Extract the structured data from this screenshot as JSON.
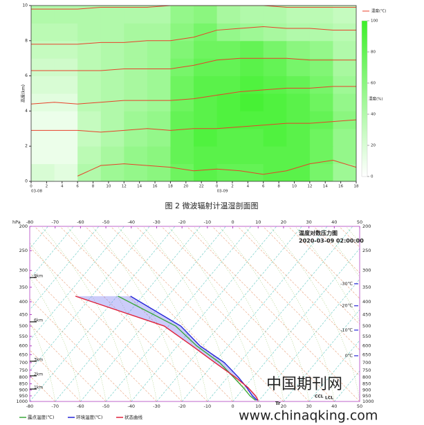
{
  "chart_data": [
    {
      "type": "heatmap",
      "ylabel": "高度(km)",
      "xlim": [
        0,
        42
      ],
      "ylim": [
        0,
        10
      ],
      "yticks": [
        0,
        2,
        4,
        6,
        8,
        10
      ],
      "xticks": [
        0,
        2,
        4,
        6,
        8,
        10,
        12,
        14,
        16,
        18,
        20,
        22,
        {
          "value": 24,
          "label": "0"
        },
        {
          "value": 26,
          "label": "2"
        },
        {
          "value": 28,
          "label": "4"
        },
        {
          "value": 30,
          "label": "6"
        },
        {
          "value": 32,
          "label": "8"
        },
        {
          "value": 34,
          "label": "10"
        },
        {
          "value": 36,
          "label": "12"
        },
        {
          "value": 38,
          "label": "14"
        },
        {
          "value": 40,
          "label": "16"
        },
        {
          "value": 42,
          "label": "18"
        }
      ],
      "dates": [
        {
          "value": 0,
          "label": "03-08"
        },
        {
          "value": 24,
          "label": "03-09"
        }
      ],
      "humidity": {
        "name": "湿度(%)",
        "clim": [
          0,
          100
        ],
        "colorbar_ticks": [
          100,
          80,
          60,
          40,
          20,
          0
        ],
        "x_bins": [
          0,
          3,
          6,
          9,
          12,
          15,
          18,
          21,
          24,
          27,
          30,
          33,
          36,
          39,
          42
        ],
        "y_bins": [
          0,
          1,
          2,
          3,
          4,
          5,
          6,
          7,
          8,
          9,
          10
        ],
        "values": [
          [
            20,
            15,
            40,
            50,
            55,
            60,
            75,
            85,
            80,
            80,
            85,
            85,
            70,
            50
          ],
          [
            10,
            10,
            35,
            45,
            55,
            60,
            80,
            85,
            85,
            85,
            85,
            85,
            75,
            55
          ],
          [
            10,
            10,
            30,
            40,
            50,
            55,
            80,
            90,
            85,
            85,
            90,
            85,
            75,
            55
          ],
          [
            10,
            10,
            30,
            40,
            50,
            55,
            80,
            85,
            90,
            90,
            90,
            85,
            80,
            60
          ],
          [
            15,
            15,
            35,
            40,
            45,
            50,
            75,
            85,
            90,
            95,
            90,
            85,
            75,
            55
          ],
          [
            20,
            20,
            35,
            40,
            45,
            50,
            75,
            85,
            85,
            90,
            85,
            80,
            70,
            50
          ],
          [
            25,
            25,
            35,
            40,
            45,
            50,
            70,
            80,
            80,
            85,
            80,
            70,
            65,
            45
          ],
          [
            30,
            30,
            35,
            40,
            45,
            50,
            65,
            75,
            75,
            80,
            70,
            60,
            55,
            40
          ],
          [
            35,
            35,
            40,
            40,
            45,
            45,
            60,
            70,
            55,
            50,
            45,
            40,
            40,
            35
          ],
          [
            40,
            40,
            40,
            40,
            40,
            40,
            55,
            60,
            45,
            40,
            40,
            35,
            35,
            30
          ]
        ]
      },
      "temperature": {
        "name": "温度(℃)",
        "color": "#e8402a",
        "x": [
          0,
          3,
          6,
          9,
          12,
          15,
          18,
          21,
          24,
          27,
          30,
          33,
          36,
          39,
          42
        ],
        "lines": [
          [
            null,
            null,
            0.3,
            0.9,
            1.0,
            0.9,
            0.8,
            0.6,
            0.7,
            0.6,
            0.4,
            0.6,
            1.0,
            1.2,
            0.8
          ],
          [
            2.9,
            2.9,
            2.9,
            2.8,
            2.9,
            3.0,
            2.9,
            3.0,
            3.0,
            3.1,
            3.2,
            3.3,
            3.3,
            3.4,
            3.5
          ],
          [
            4.4,
            4.5,
            4.4,
            4.5,
            4.6,
            4.6,
            4.6,
            4.7,
            4.9,
            5.1,
            5.2,
            5.3,
            5.3,
            5.4,
            5.4
          ],
          [
            6.3,
            6.3,
            6.3,
            6.3,
            6.4,
            6.4,
            6.4,
            6.6,
            6.9,
            7.0,
            7.0,
            7.0,
            6.9,
            6.9,
            6.9
          ],
          [
            7.8,
            7.8,
            7.8,
            7.9,
            7.9,
            8.0,
            8.0,
            8.2,
            8.6,
            8.7,
            8.8,
            8.7,
            8.7,
            8.6,
            8.6
          ],
          [
            9.8,
            9.8,
            9.8,
            9.9,
            9.9,
            9.9,
            10.0,
            10.0,
            10.0,
            10.0,
            10.0,
            9.9,
            9.9,
            9.9,
            9.9
          ]
        ]
      },
      "caption": "图 2  微波辐射计温湿剖面图"
    },
    {
      "type": "skewt",
      "title": "温度对数压力图",
      "time": "2020-03-09 02:00:00",
      "yunit": "hPa",
      "xlim": [
        -80,
        50
      ],
      "xticks": [
        -80,
        -70,
        -60,
        -50,
        -40,
        -30,
        -20,
        -10,
        0,
        10,
        20,
        30,
        40,
        50
      ],
      "ylim": [
        1000,
        200
      ],
      "ylog": true,
      "yticks": [
        200,
        250,
        300,
        350,
        400,
        450,
        500,
        550,
        600,
        650,
        700,
        750,
        800,
        850,
        900,
        950,
        1000
      ],
      "levels": [
        380,
        500,
        600,
        700,
        800,
        880,
        950,
        990
      ],
      "series": [
        {
          "name": "露点温度(℃)",
          "color": "#3aa83a",
          "values": [
            -45.2,
            -22.5,
            -14.2,
            -5.2,
            0.3,
            4.1,
            6.8,
            9.0
          ]
        },
        {
          "name": "环境温度(℃)",
          "color": "#2424d8",
          "values": [
            -40.3,
            -20.5,
            -12.9,
            -3.3,
            2.2,
            5.5,
            7.7,
            9.6
          ]
        },
        {
          "name": "状态曲线",
          "color": "#e0203a",
          "values": [
            -62,
            -27,
            -16,
            -7,
            1,
            6,
            9,
            10
          ]
        }
      ],
      "heights": [
        {
          "label": "9km",
          "p": 320
        },
        {
          "label": "6km",
          "p": 481
        },
        {
          "label": "3km",
          "p": 691
        },
        {
          "label": "2km",
          "p": 790
        },
        {
          "label": "1km",
          "p": 892
        }
      ],
      "isotherms": [
        {
          "label": "-30℃",
          "p": 339
        },
        {
          "label": "-20℃",
          "p": 415
        },
        {
          "label": "-10℃",
          "p": 519
        },
        {
          "label": "0℃",
          "p": 657
        }
      ],
      "annotations": [
        "CCL",
        "LCL",
        "Tr"
      ]
    }
  ],
  "watermark": {
    "name": "中国期刊网",
    "url": "www.chinaqking.com"
  }
}
